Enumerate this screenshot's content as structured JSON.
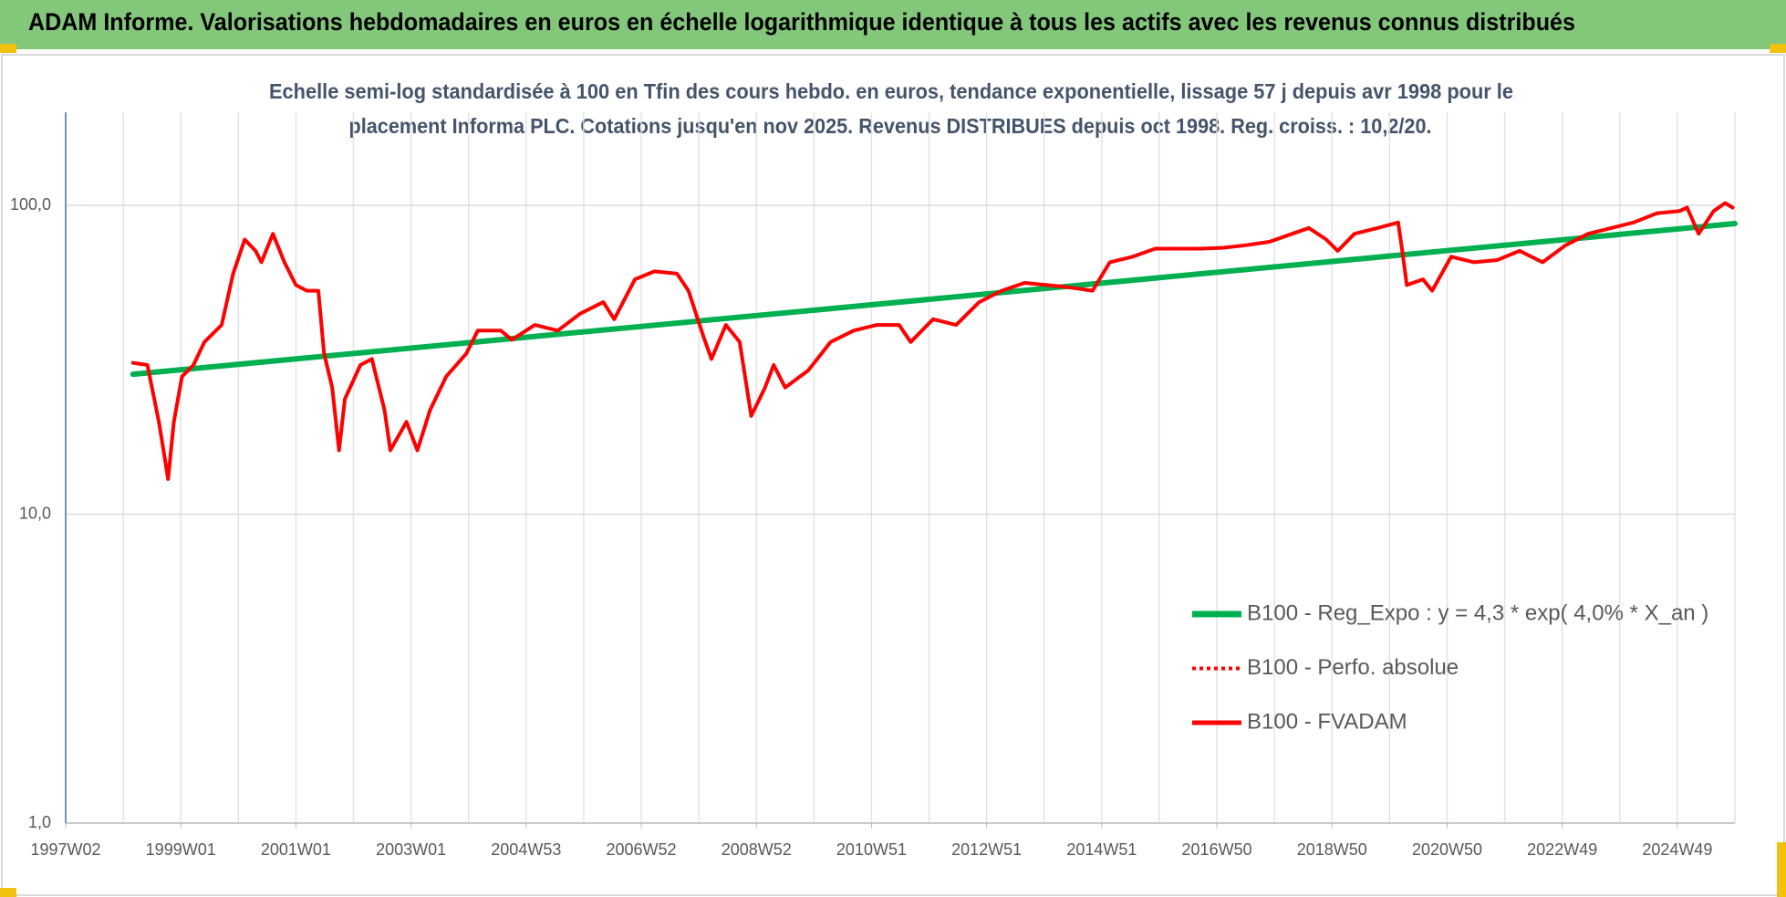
{
  "header": {
    "title": "ADAM Informe. Valorisations hebdomadaires en euros en échelle logarithmique identique à tous les actifs avec les revenus connus distribués"
  },
  "chart_data": {
    "type": "line",
    "title": [
      "Echelle semi-log standardisée à 100 en Tfin des cours hebdo. en euros, tendance exponentielle, lissage 57 j depuis avr 1998 pour le",
      "placement Informa PLC. Cotations jusqu'en nov 2025.  Revenus DISTRIBUES depuis oct 1998. Reg.  croiss. : 10,2/20."
    ],
    "ylog": true,
    "ylim": [
      1,
      200
    ],
    "yticks": [
      {
        "value": 1,
        "label": "1,0"
      },
      {
        "value": 10,
        "label": "10,0"
      },
      {
        "value": 100,
        "label": "100,0"
      }
    ],
    "xlim": [
      1997,
      2026
    ],
    "xticks": [
      {
        "value": 1997,
        "label": "1997W02"
      },
      {
        "value": 1999,
        "label": "1999W01"
      },
      {
        "value": 2001,
        "label": "2001W01"
      },
      {
        "value": 2003,
        "label": "2003W01"
      },
      {
        "value": 2005,
        "label": "2004W53"
      },
      {
        "value": 2007,
        "label": "2006W52"
      },
      {
        "value": 2009,
        "label": "2008W52"
      },
      {
        "value": 2011,
        "label": "2010W51"
      },
      {
        "value": 2013,
        "label": "2012W51"
      },
      {
        "value": 2015,
        "label": "2014W51"
      },
      {
        "value": 2017,
        "label": "2016W50"
      },
      {
        "value": 2019,
        "label": "2018W50"
      },
      {
        "value": 2021,
        "label": "2020W50"
      },
      {
        "value": 2023,
        "label": "2022W49"
      },
      {
        "value": 2025,
        "label": "2024W49"
      }
    ],
    "xgrid": [
      1998,
      1999,
      2000,
      2001,
      2002,
      2003,
      2004,
      2005,
      2006,
      2007,
      2008,
      2009,
      2010,
      2011,
      2012,
      2013,
      2014,
      2015,
      2016,
      2017,
      2018,
      2019,
      2020,
      2021,
      2022,
      2023,
      2024,
      2025,
      2026
    ],
    "grid": true,
    "legend": "right",
    "series": [
      {
        "name": "B100 - Reg_Expo : y = 4,3 * exp( 4,0% *  X_an )",
        "color": "#00b050",
        "width": 6,
        "x": [
          1998.17,
          2026
        ],
        "values": [
          28.4,
          87.3
        ]
      },
      {
        "name": "B100 - Perfo. absolue",
        "color": "#ff0000",
        "dash": true,
        "width": 3
      },
      {
        "name": "B100 - FVADAM",
        "color": "#ff0000",
        "width": 4,
        "x": [
          1998.17,
          1998.42,
          1998.62,
          1998.78,
          1998.88,
          1999.02,
          1999.22,
          1999.41,
          1999.71,
          1999.91,
          2000.11,
          2000.3,
          2000.4,
          2000.6,
          2000.8,
          2001.0,
          2001.19,
          2001.39,
          2001.49,
          2001.63,
          2001.75,
          2001.85,
          2002.12,
          2002.32,
          2002.54,
          2002.64,
          2002.92,
          2003.11,
          2003.33,
          2003.61,
          2003.96,
          2004.16,
          2004.56,
          2004.75,
          2005.15,
          2005.55,
          2005.94,
          2006.34,
          2006.53,
          2006.89,
          2007.23,
          2007.62,
          2007.82,
          2008.08,
          2008.22,
          2008.47,
          2008.71,
          2008.91,
          2009.15,
          2009.3,
          2009.5,
          2009.9,
          2010.29,
          2010.69,
          2011.09,
          2011.48,
          2011.68,
          2012.07,
          2012.47,
          2012.87,
          2013.26,
          2013.66,
          2014.05,
          2014.45,
          2014.84,
          2015.14,
          2015.54,
          2015.93,
          2016.33,
          2016.72,
          2017.12,
          2017.51,
          2017.91,
          2018.31,
          2018.6,
          2018.9,
          2019.1,
          2019.39,
          2019.79,
          2020.15,
          2020.22,
          2020.3,
          2020.58,
          2020.74,
          2021.07,
          2021.47,
          2021.87,
          2022.26,
          2022.66,
          2023.06,
          2023.45,
          2023.85,
          2024.24,
          2024.64,
          2025.04,
          2025.17,
          2025.37,
          2025.63,
          2025.83,
          2025.96
        ],
        "values": [
          30.9,
          30.4,
          19.9,
          13.0,
          19.9,
          27.9,
          30.4,
          36.1,
          41.0,
          60.1,
          77.5,
          71.2,
          65.4,
          80.9,
          65.4,
          55.2,
          52.9,
          52.9,
          33.1,
          25.7,
          16.1,
          23.6,
          30.4,
          31.8,
          21.7,
          16.1,
          19.9,
          16.1,
          21.7,
          27.9,
          33.1,
          39.3,
          39.3,
          36.7,
          41.0,
          39.3,
          44.6,
          48.6,
          42.8,
          57.6,
          61.1,
          60.1,
          52.9,
          37.6,
          31.8,
          41.0,
          36.1,
          20.8,
          25.7,
          30.4,
          25.7,
          29.2,
          36.1,
          39.3,
          41.0,
          41.0,
          36.1,
          42.8,
          41.0,
          48.6,
          52.9,
          56.1,
          55.2,
          54.2,
          52.9,
          65.4,
          68.2,
          72.4,
          72.4,
          72.4,
          72.9,
          74.3,
          76.2,
          80.9,
          84.4,
          77.5,
          71.2,
          80.9,
          84.4,
          88.0,
          71.2,
          55.2,
          57.6,
          52.9,
          68.2,
          65.4,
          66.5,
          71.2,
          65.4,
          74.3,
          80.9,
          84.4,
          88.0,
          94.2,
          95.8,
          98.3,
          80.9,
          95.8,
          101.7,
          98.3
        ]
      }
    ]
  }
}
